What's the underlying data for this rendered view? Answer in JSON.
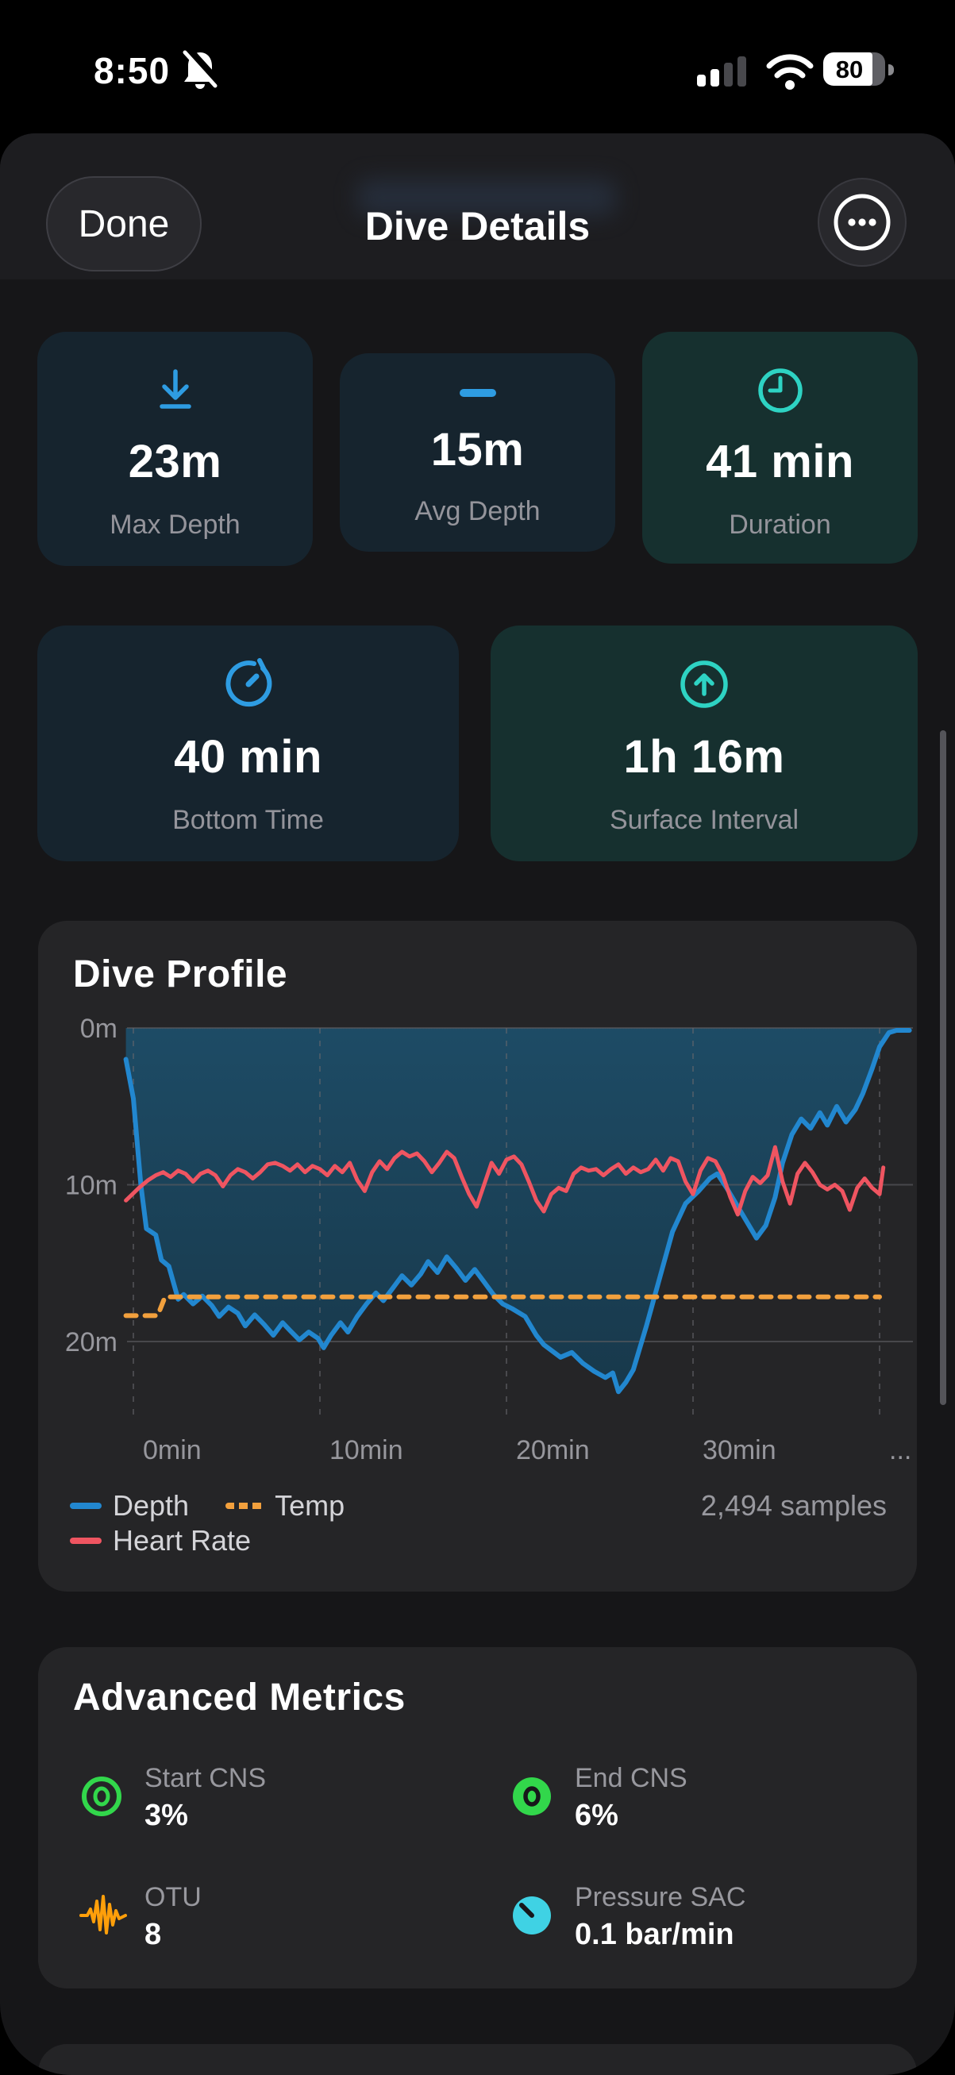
{
  "status_bar": {
    "time": "8:50",
    "battery_percent": "80"
  },
  "nav": {
    "done_label": "Done",
    "title": "Dive Details"
  },
  "stat_cards": [
    {
      "icon": "arrow-down-to-line-icon",
      "value": "23m",
      "label": "Max Depth",
      "tint": "#2e9ce2",
      "bg": "#16242e"
    },
    {
      "icon": "dash-icon",
      "value": "15m",
      "label": "Avg Depth",
      "tint": "#2e9ce2",
      "bg": "#16242e"
    },
    {
      "icon": "clock-icon",
      "value": "41 min",
      "label": "Duration",
      "tint": "#2ed3c3",
      "bg": "#16302f"
    },
    {
      "icon": "timer-icon",
      "value": "40 min",
      "label": "Bottom Time",
      "tint": "#2e9ce2",
      "bg": "#16242e"
    },
    {
      "icon": "arrow-up-circle-icon",
      "value": "1h 16m",
      "label": "Surface Interval",
      "tint": "#2ed3c3",
      "bg": "#16302f"
    }
  ],
  "dive_profile": {
    "title": "Dive Profile",
    "samples_note": "2,494 samples",
    "legend": [
      {
        "label": "Depth",
        "color": "#2287cf",
        "style": "solid"
      },
      {
        "label": "Temp",
        "color": "#f2a03d",
        "style": "dashed"
      },
      {
        "label": "Heart Rate",
        "color": "#ef5561",
        "style": "solid"
      }
    ],
    "chart_data": {
      "type": "line",
      "title": "Dive Profile",
      "x_unit": "minutes",
      "y_unit": "depth meters (inverted, 0 at surface)",
      "x_ticks_min": [
        0,
        10,
        20,
        30,
        40
      ],
      "x_tick_labels": [
        "0min",
        "10min",
        "20min",
        "30min",
        "..."
      ],
      "y_ticks_m": [
        0,
        10,
        20
      ],
      "y_tick_labels": [
        "0m",
        "10m",
        "20m"
      ],
      "x_range_min": [
        -0.5,
        41.6
      ],
      "y_range_m": [
        0,
        25
      ],
      "grid": "horizontal solid, vertical dashed",
      "legend_position": "below chart",
      "note": "Heart Rate and Temp are drawn on the same canvas as depth; no secondary axis labels are shown",
      "series": [
        {
          "name": "Depth",
          "color": "#2287cf",
          "style": "solid",
          "area_fill": true,
          "points": [
            [
              -0.4,
              2.0
            ],
            [
              0,
              4.5
            ],
            [
              0.4,
              10.0
            ],
            [
              0.7,
              12.8
            ],
            [
              1.2,
              13.2
            ],
            [
              1.5,
              14.8
            ],
            [
              1.9,
              15.2
            ],
            [
              2.4,
              17.3
            ],
            [
              2.7,
              17.0
            ],
            [
              3.2,
              17.6
            ],
            [
              3.7,
              17.1
            ],
            [
              4.2,
              17.7
            ],
            [
              4.6,
              18.4
            ],
            [
              5.1,
              17.8
            ],
            [
              5.6,
              18.2
            ],
            [
              6.0,
              19.0
            ],
            [
              6.5,
              18.3
            ],
            [
              7.0,
              18.9
            ],
            [
              7.5,
              19.6
            ],
            [
              8.0,
              18.8
            ],
            [
              8.4,
              19.3
            ],
            [
              8.9,
              19.9
            ],
            [
              9.4,
              19.4
            ],
            [
              9.9,
              19.8
            ],
            [
              10.2,
              20.4
            ],
            [
              10.6,
              19.6
            ],
            [
              11.1,
              18.8
            ],
            [
              11.5,
              19.4
            ],
            [
              12.0,
              18.4
            ],
            [
              12.5,
              17.6
            ],
            [
              13.0,
              16.9
            ],
            [
              13.4,
              17.4
            ],
            [
              13.9,
              16.6
            ],
            [
              14.4,
              15.8
            ],
            [
              14.9,
              16.4
            ],
            [
              15.4,
              15.7
            ],
            [
              15.8,
              14.9
            ],
            [
              16.3,
              15.6
            ],
            [
              16.8,
              14.6
            ],
            [
              17.3,
              15.3
            ],
            [
              17.8,
              16.1
            ],
            [
              18.3,
              15.4
            ],
            [
              18.8,
              16.2
            ],
            [
              19.3,
              17.0
            ],
            [
              19.8,
              17.6
            ],
            [
              20.3,
              17.9
            ],
            [
              21.0,
              18.4
            ],
            [
              21.6,
              19.6
            ],
            [
              22.0,
              20.2
            ],
            [
              22.9,
              21.0
            ],
            [
              23.5,
              20.7
            ],
            [
              24.1,
              21.4
            ],
            [
              24.7,
              21.9
            ],
            [
              25.3,
              22.3
            ],
            [
              25.7,
              22.0
            ],
            [
              26.0,
              23.2
            ],
            [
              26.4,
              22.6
            ],
            [
              26.8,
              21.8
            ],
            [
              27.5,
              19.0
            ],
            [
              28.2,
              16.0
            ],
            [
              28.9,
              13.0
            ],
            [
              29.6,
              11.2
            ],
            [
              30.3,
              10.4
            ],
            [
              30.9,
              9.6
            ],
            [
              31.3,
              9.3
            ],
            [
              31.8,
              10.2
            ],
            [
              32.5,
              11.6
            ],
            [
              33.1,
              12.8
            ],
            [
              33.4,
              13.4
            ],
            [
              33.9,
              12.6
            ],
            [
              34.4,
              10.8
            ],
            [
              34.8,
              8.6
            ],
            [
              35.3,
              6.8
            ],
            [
              35.8,
              5.8
            ],
            [
              36.3,
              6.4
            ],
            [
              36.8,
              5.4
            ],
            [
              37.2,
              6.2
            ],
            [
              37.7,
              5.0
            ],
            [
              38.2,
              6.0
            ],
            [
              38.7,
              5.2
            ],
            [
              39.1,
              4.2
            ],
            [
              39.6,
              2.6
            ],
            [
              40.0,
              1.2
            ],
            [
              40.5,
              0.3
            ],
            [
              40.9,
              0.15
            ],
            [
              41.6,
              0.15
            ]
          ]
        },
        {
          "name": "Temp",
          "color": "#f2a03d",
          "style": "dashed",
          "points": [
            [
              -0.4,
              18.35
            ],
            [
              1.3,
              18.35
            ],
            [
              1.7,
              17.15
            ],
            [
              40.0,
              17.15
            ]
          ]
        },
        {
          "name": "Heart Rate",
          "color": "#ef5561",
          "style": "solid",
          "points": [
            [
              -0.4,
              11.0
            ],
            [
              0.3,
              10.2
            ],
            [
              0.8,
              9.7
            ],
            [
              1.2,
              9.4
            ],
            [
              1.6,
              9.2
            ],
            [
              2.0,
              9.5
            ],
            [
              2.4,
              9.1
            ],
            [
              2.8,
              9.3
            ],
            [
              3.2,
              9.8
            ],
            [
              3.6,
              9.3
            ],
            [
              4.0,
              9.1
            ],
            [
              4.4,
              9.4
            ],
            [
              4.8,
              10.1
            ],
            [
              5.2,
              9.4
            ],
            [
              5.6,
              9.0
            ],
            [
              6.0,
              9.2
            ],
            [
              6.4,
              9.6
            ],
            [
              6.8,
              9.2
            ],
            [
              7.2,
              8.7
            ],
            [
              7.6,
              8.6
            ],
            [
              8.0,
              8.8
            ],
            [
              8.4,
              9.1
            ],
            [
              8.8,
              8.7
            ],
            [
              9.2,
              9.2
            ],
            [
              9.6,
              8.8
            ],
            [
              10.0,
              9.0
            ],
            [
              10.4,
              9.4
            ],
            [
              10.8,
              8.8
            ],
            [
              11.2,
              9.2
            ],
            [
              11.6,
              8.6
            ],
            [
              12.0,
              9.7
            ],
            [
              12.4,
              10.4
            ],
            [
              12.8,
              9.2
            ],
            [
              13.2,
              8.5
            ],
            [
              13.6,
              9.0
            ],
            [
              14.0,
              8.3
            ],
            [
              14.4,
              7.9
            ],
            [
              14.8,
              8.2
            ],
            [
              15.2,
              8.0
            ],
            [
              15.6,
              8.5
            ],
            [
              16.0,
              9.2
            ],
            [
              16.4,
              8.6
            ],
            [
              16.8,
              7.9
            ],
            [
              17.2,
              8.3
            ],
            [
              17.6,
              9.5
            ],
            [
              18.0,
              10.6
            ],
            [
              18.4,
              11.4
            ],
            [
              18.8,
              10.0
            ],
            [
              19.2,
              8.6
            ],
            [
              19.6,
              9.3
            ],
            [
              20.0,
              8.4
            ],
            [
              20.4,
              8.2
            ],
            [
              20.8,
              8.7
            ],
            [
              21.2,
              9.8
            ],
            [
              21.6,
              11.0
            ],
            [
              22.0,
              11.7
            ],
            [
              22.4,
              10.6
            ],
            [
              22.8,
              10.2
            ],
            [
              23.2,
              10.4
            ],
            [
              23.6,
              9.3
            ],
            [
              24.0,
              8.9
            ],
            [
              24.4,
              9.1
            ],
            [
              24.8,
              9.0
            ],
            [
              25.2,
              9.4
            ],
            [
              25.6,
              9.0
            ],
            [
              26.0,
              8.7
            ],
            [
              26.4,
              9.3
            ],
            [
              26.8,
              8.9
            ],
            [
              27.2,
              9.2
            ],
            [
              27.6,
              9.0
            ],
            [
              28.0,
              8.4
            ],
            [
              28.4,
              9.1
            ],
            [
              28.8,
              8.3
            ],
            [
              29.2,
              8.5
            ],
            [
              29.6,
              9.8
            ],
            [
              30.0,
              10.6
            ],
            [
              30.4,
              9.1
            ],
            [
              30.8,
              8.3
            ],
            [
              31.2,
              8.5
            ],
            [
              31.6,
              9.4
            ],
            [
              32.0,
              10.8
            ],
            [
              32.4,
              11.9
            ],
            [
              32.8,
              10.4
            ],
            [
              33.2,
              9.5
            ],
            [
              33.6,
              9.9
            ],
            [
              34.0,
              9.4
            ],
            [
              34.4,
              7.6
            ],
            [
              34.8,
              9.8
            ],
            [
              35.2,
              11.2
            ],
            [
              35.6,
              9.3
            ],
            [
              36.0,
              8.6
            ],
            [
              36.4,
              9.2
            ],
            [
              36.8,
              10.0
            ],
            [
              37.2,
              10.3
            ],
            [
              37.6,
              10.0
            ],
            [
              38.0,
              10.4
            ],
            [
              38.4,
              11.6
            ],
            [
              38.8,
              10.2
            ],
            [
              39.2,
              9.6
            ],
            [
              39.6,
              10.2
            ],
            [
              40.0,
              10.6
            ],
            [
              40.2,
              8.9
            ]
          ]
        }
      ]
    }
  },
  "advanced_metrics": {
    "title": "Advanced Metrics",
    "items": [
      {
        "icon": "concentric-circles-icon",
        "color": "#32d74b",
        "label": "Start CNS",
        "value": "3%"
      },
      {
        "icon": "filled-ring-icon",
        "color": "#32d74b",
        "label": "End CNS",
        "value": "6%"
      },
      {
        "icon": "waveform-icon",
        "color": "#ff9f0a",
        "label": "OTU",
        "value": "8"
      },
      {
        "icon": "gauge-icon",
        "color": "#3fd2e4",
        "label": "Pressure SAC",
        "value": "0.1 bar/min"
      }
    ]
  }
}
